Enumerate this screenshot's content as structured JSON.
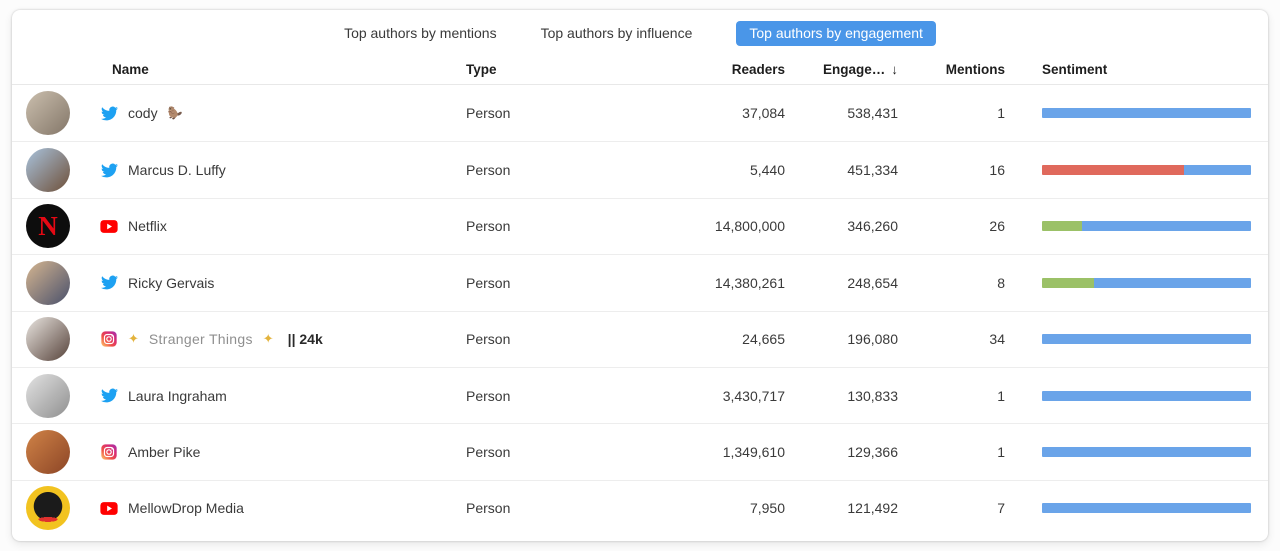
{
  "accent_color": "#4a96e8",
  "tabs": [
    {
      "label": "Top authors by mentions",
      "active": false
    },
    {
      "label": "Top authors by influence",
      "active": false
    },
    {
      "label": "Top authors by engagement",
      "active": true
    }
  ],
  "columns": {
    "name": "Name",
    "type": "Type",
    "readers": "Readers",
    "engagement": "Engage…",
    "engagement_sort": "↓",
    "mentions": "Mentions",
    "sentiment": "Sentiment"
  },
  "sentiment_colors": {
    "positive": "#9bc167",
    "neutral": "#6aa4e9",
    "negative": "#e0695c"
  },
  "network_colors": {
    "twitter": "#1da1f2",
    "youtube": "#ff0000",
    "instagram": "#d62976"
  },
  "rows": [
    {
      "network": "twitter",
      "name": "cody",
      "emoji": "🦫",
      "type": "Person",
      "readers": "37,084",
      "engagement": "538,431",
      "mentions": "1",
      "sentiment": [
        {
          "kind": "neutral",
          "pct": 100
        }
      ],
      "avatar": {
        "style": "photo",
        "c1": "#cbbfae",
        "c2": "#837668"
      }
    },
    {
      "network": "twitter",
      "name": "Marcus D. Luffy",
      "type": "Person",
      "readers": "5,440",
      "engagement": "451,334",
      "mentions": "16",
      "sentiment": [
        {
          "kind": "negative",
          "pct": 68
        },
        {
          "kind": "neutral",
          "pct": 32
        }
      ],
      "avatar": {
        "style": "photo",
        "c1": "#a9c3dd",
        "c2": "#6e4f38"
      }
    },
    {
      "network": "youtube",
      "name": "Netflix",
      "type": "Person",
      "readers": "14,800,000",
      "engagement": "346,260",
      "mentions": "26",
      "sentiment": [
        {
          "kind": "positive",
          "pct": 19
        },
        {
          "kind": "neutral",
          "pct": 81
        }
      ],
      "avatar": {
        "style": "letter",
        "bg": "#0d0d0d",
        "letter": "N",
        "letter_color": "#e50914"
      }
    },
    {
      "network": "twitter",
      "name": "Ricky Gervais",
      "type": "Person",
      "readers": "14,380,261",
      "engagement": "248,654",
      "mentions": "8",
      "sentiment": [
        {
          "kind": "positive",
          "pct": 25
        },
        {
          "kind": "neutral",
          "pct": 75
        }
      ],
      "avatar": {
        "style": "photo",
        "c1": "#d6b691",
        "c2": "#49506b"
      }
    },
    {
      "network": "instagram",
      "pre": "✦",
      "name": "Stranger Things",
      "post": "✦",
      "extra": "|| 24k",
      "muted": true,
      "type": "Person",
      "readers": "24,665",
      "engagement": "196,080",
      "mentions": "34",
      "sentiment": [
        {
          "kind": "neutral",
          "pct": 100
        }
      ],
      "avatar": {
        "style": "photo",
        "c1": "#eae6e1",
        "c2": "#56423a"
      }
    },
    {
      "network": "twitter",
      "name": "Laura Ingraham",
      "type": "Person",
      "readers": "3,430,717",
      "engagement": "130,833",
      "mentions": "1",
      "sentiment": [
        {
          "kind": "neutral",
          "pct": 100
        }
      ],
      "avatar": {
        "style": "photo",
        "c1": "#e3e3e3",
        "c2": "#8f8f8f"
      }
    },
    {
      "network": "instagram",
      "name": "Amber Pike",
      "type": "Person",
      "readers": "1,349,610",
      "engagement": "129,366",
      "mentions": "1",
      "sentiment": [
        {
          "kind": "neutral",
          "pct": 100
        }
      ],
      "avatar": {
        "style": "photo",
        "c1": "#d08347",
        "c2": "#8c4526"
      }
    },
    {
      "network": "youtube",
      "name": "MellowDrop Media",
      "type": "Person",
      "readers": "7,950",
      "engagement": "121,492",
      "mentions": "7",
      "sentiment": [
        {
          "kind": "neutral",
          "pct": 100
        }
      ],
      "avatar": {
        "style": "badge",
        "bg": "#f2c320",
        "inner": "#1b1b1b",
        "accent": "#e0312e"
      }
    }
  ]
}
